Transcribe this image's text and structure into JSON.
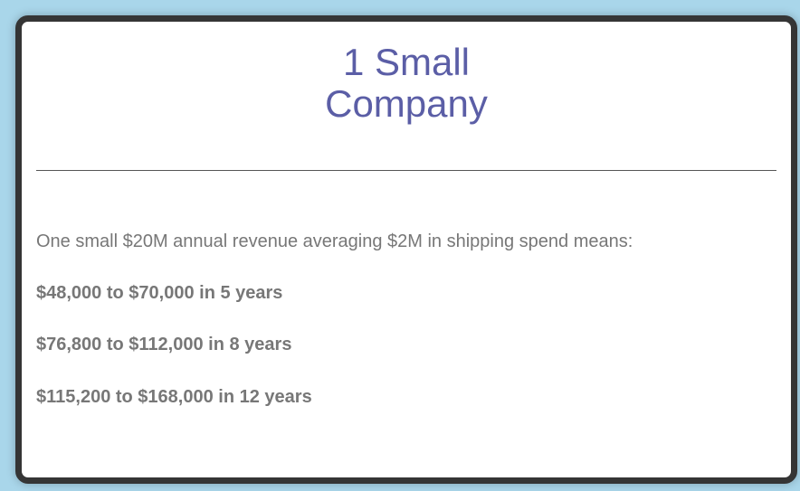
{
  "card": {
    "title_line1": "1 Small",
    "title_line2": "Company",
    "intro": "One small $20M annual revenue averaging $2M in shipping spend means:",
    "lines": [
      "$48,000 to $70,000 in 5 years",
      "$76,800 to $112,000 in 8 years",
      "$115,200 to $168,000 in 12 years"
    ]
  }
}
